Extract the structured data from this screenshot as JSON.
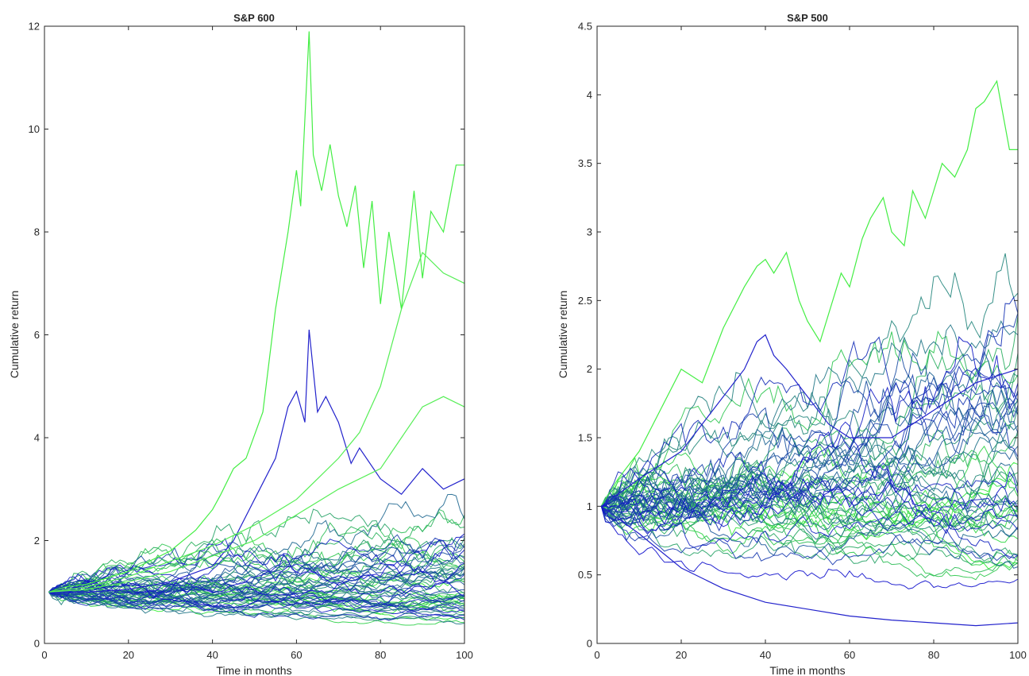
{
  "chart_data": [
    {
      "type": "line",
      "title": "S&P 600",
      "xlabel": "Time in months",
      "ylabel": "Cumulative return",
      "xlim": [
        0,
        100
      ],
      "ylim": [
        0,
        12
      ],
      "xticks": [
        0,
        20,
        40,
        60,
        80,
        100
      ],
      "yticks": [
        0,
        2,
        4,
        6,
        8,
        10,
        12
      ],
      "grid": false,
      "n_paths": 60,
      "color_gradient": [
        "#33ee33",
        "#1010cc"
      ],
      "highlighted_paths": [
        {
          "color": "#44ee44",
          "x": [
            0,
            5,
            10,
            20,
            30,
            36,
            40,
            42,
            45,
            48,
            52,
            55,
            58,
            60,
            61,
            63,
            64,
            66,
            68,
            70,
            72,
            74,
            76,
            78,
            80,
            82,
            85,
            88,
            90,
            92,
            95,
            98,
            100
          ],
          "y": [
            1,
            1.1,
            1.15,
            1.4,
            1.8,
            2.2,
            2.6,
            2.9,
            3.4,
            3.6,
            4.5,
            6.5,
            8.0,
            9.2,
            8.5,
            11.9,
            9.5,
            8.8,
            9.7,
            8.7,
            8.1,
            8.9,
            7.3,
            8.6,
            6.6,
            8.0,
            6.5,
            8.8,
            7.1,
            8.4,
            8.0,
            9.3,
            9.3
          ]
        },
        {
          "color": "#2222cc",
          "x": [
            0,
            10,
            20,
            30,
            40,
            45,
            50,
            55,
            58,
            60,
            62,
            63,
            65,
            67,
            70,
            73,
            75,
            80,
            85,
            90,
            95,
            100
          ],
          "y": [
            1,
            1.0,
            1.05,
            1.2,
            1.5,
            2.0,
            2.8,
            3.6,
            4.6,
            4.9,
            4.3,
            6.1,
            4.5,
            4.8,
            4.3,
            3.5,
            3.8,
            3.2,
            2.9,
            3.4,
            3.0,
            3.2
          ]
        },
        {
          "color": "#55ee55",
          "x": [
            0,
            10,
            20,
            30,
            40,
            50,
            60,
            65,
            70,
            75,
            80,
            85,
            90,
            95,
            100
          ],
          "y": [
            1,
            1.1,
            1.3,
            1.6,
            1.9,
            2.3,
            2.8,
            3.2,
            3.6,
            4.1,
            5.0,
            6.5,
            7.6,
            7.2,
            7.0
          ]
        },
        {
          "color": "#55ee55",
          "x": [
            0,
            10,
            20,
            30,
            40,
            50,
            60,
            70,
            80,
            85,
            90,
            95,
            100
          ],
          "y": [
            1,
            1.05,
            1.2,
            1.4,
            1.7,
            2.0,
            2.5,
            3.0,
            3.4,
            4.0,
            4.6,
            4.8,
            4.6
          ]
        }
      ]
    },
    {
      "type": "line",
      "title": "S&P 500",
      "xlabel": "Time in months",
      "ylabel": "Cumulative return",
      "xlim": [
        0,
        100
      ],
      "ylim": [
        0,
        4.5
      ],
      "xticks": [
        0,
        20,
        40,
        60,
        80,
        100
      ],
      "yticks": [
        0,
        0.5,
        1,
        1.5,
        2,
        2.5,
        3,
        3.5,
        4,
        4.5
      ],
      "ytick_labels": [
        "0",
        "0.5",
        "1",
        "1.5",
        "2",
        "2.5",
        "3",
        "3.5",
        "4",
        "4.5"
      ],
      "grid": false,
      "n_paths": 60,
      "color_gradient": [
        "#33ee33",
        "#1010cc"
      ],
      "highlighted_paths": [
        {
          "color": "#44ee44",
          "x": [
            0,
            5,
            10,
            15,
            20,
            25,
            30,
            35,
            38,
            40,
            42,
            45,
            48,
            50,
            53,
            55,
            58,
            60,
            63,
            65,
            68,
            70,
            73,
            75,
            78,
            80,
            82,
            85,
            88,
            90,
            92,
            95,
            98,
            100
          ],
          "y": [
            1,
            1.2,
            1.4,
            1.7,
            2.0,
            1.9,
            2.3,
            2.6,
            2.75,
            2.8,
            2.7,
            2.85,
            2.5,
            2.35,
            2.2,
            2.4,
            2.7,
            2.6,
            2.95,
            3.1,
            3.25,
            3.0,
            2.9,
            3.3,
            3.1,
            3.3,
            3.5,
            3.4,
            3.6,
            3.9,
            3.95,
            4.1,
            3.6,
            3.6
          ]
        },
        {
          "color": "#2222cc",
          "x": [
            0,
            10,
            20,
            30,
            35,
            38,
            40,
            42,
            45,
            50,
            55,
            60,
            70,
            80,
            90,
            100
          ],
          "y": [
            1,
            1.2,
            1.4,
            1.8,
            2.0,
            2.2,
            2.25,
            2.1,
            2.0,
            1.8,
            1.6,
            1.5,
            1.5,
            1.7,
            1.9,
            2.0
          ]
        },
        {
          "color": "#2222cc",
          "x": [
            0,
            10,
            20,
            30,
            40,
            50,
            60,
            70,
            80,
            90,
            100
          ],
          "y": [
            1,
            0.8,
            0.55,
            0.4,
            0.3,
            0.25,
            0.2,
            0.17,
            0.15,
            0.13,
            0.15
          ]
        }
      ]
    }
  ]
}
